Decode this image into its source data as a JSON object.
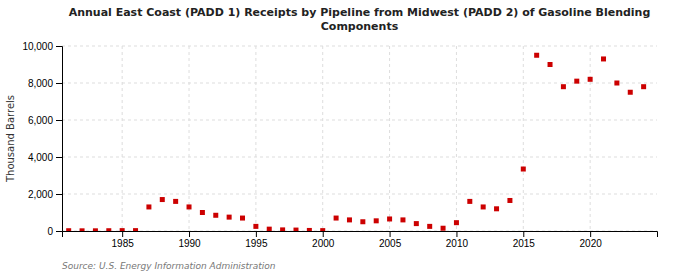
{
  "chart_data": {
    "type": "scatter",
    "title": "Annual East Coast (PADD 1) Receipts by Pipeline from Midwest (PADD 2) of Gasoline Blending\nComponents",
    "y_label": "Thousand Barrels",
    "source": "Source: U.S. Energy Information Administration",
    "x": [
      1981,
      1982,
      1983,
      1984,
      1985,
      1986,
      1987,
      1988,
      1989,
      1990,
      1991,
      1992,
      1993,
      1994,
      1995,
      1996,
      1997,
      1998,
      1999,
      2000,
      2001,
      2002,
      2003,
      2004,
      2005,
      2006,
      2007,
      2008,
      2009,
      2010,
      2011,
      2012,
      2013,
      2014,
      2015,
      2016,
      2017,
      2018,
      2019,
      2020,
      2021,
      2022,
      2023,
      2024
    ],
    "values": [
      15,
      10,
      10,
      15,
      20,
      20,
      1300,
      1700,
      1600,
      1300,
      1000,
      850,
      750,
      700,
      250,
      100,
      60,
      50,
      30,
      20,
      700,
      600,
      500,
      550,
      650,
      600,
      400,
      250,
      150,
      450,
      1600,
      1300,
      1200,
      1650,
      3350,
      9500,
      9000,
      7800,
      8100,
      8200,
      9300,
      8000,
      7500,
      7800
    ],
    "color": "#cc0000",
    "marker": "square",
    "xlim": [
      1980.5,
      2025
    ],
    "xticks": [
      1985,
      1990,
      1995,
      2000,
      2005,
      2010,
      2015,
      2020
    ],
    "ylim": [
      0,
      10000
    ],
    "yticks": [
      0,
      {
        "value": 2000,
        "label": "2,000"
      },
      {
        "value": 4000,
        "label": "4,000"
      },
      {
        "value": 6000,
        "label": "6,000"
      },
      {
        "value": 8000,
        "label": "8,000"
      },
      {
        "value": 10000,
        "label": "10,000"
      }
    ],
    "grid": true
  }
}
